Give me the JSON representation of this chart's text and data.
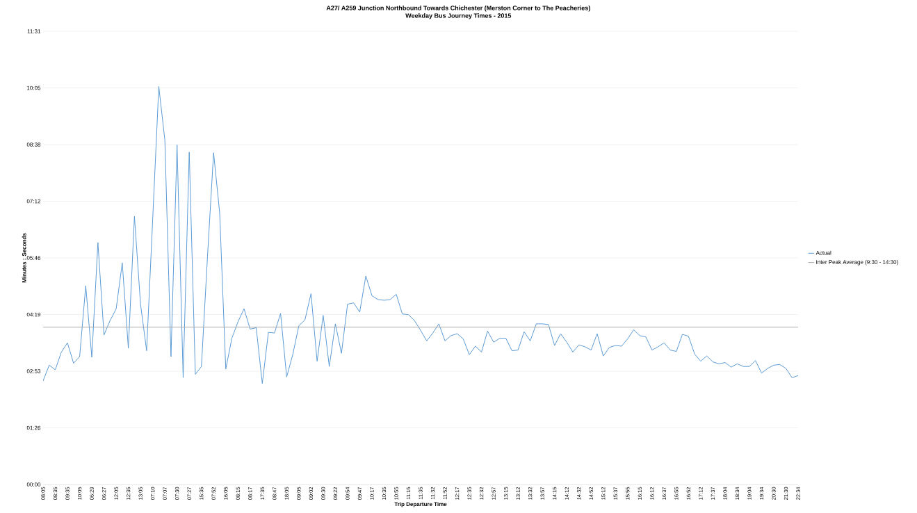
{
  "chart_data": {
    "type": "line",
    "title": "A27/ A259 Junction Northbound Towards Chichester (Merston Corner to The Peacheries)",
    "subtitle": "Weekday Bus Journey Times - 2015",
    "xlabel": "Trip Departure Time",
    "ylabel": "Minutes : Seconds",
    "categories": [
      "08:05",
      null,
      "08:35",
      null,
      "09:35",
      null,
      "10:05",
      null,
      "06:29",
      null,
      "06:27",
      null,
      "12:05",
      null,
      "12:35",
      null,
      "13:05",
      null,
      "07:10",
      null,
      "07:07",
      null,
      "07:30",
      null,
      "07:27",
      null,
      "15:35",
      null,
      "07:52",
      null,
      "16:05",
      null,
      "08:15",
      null,
      "08:17",
      null,
      "17:35",
      null,
      "08:47",
      null,
      "18:05",
      null,
      "09:05",
      null,
      "09:02",
      null,
      "09:30",
      null,
      "09:22",
      null,
      "09:54",
      null,
      "09:47",
      null,
      "10:17",
      null,
      "10:35",
      null,
      "10:55",
      null,
      "11:15",
      null,
      "11:35",
      null,
      "11:32",
      null,
      "11:52",
      null,
      "12:17",
      null,
      "12:35",
      null,
      "12:32",
      null,
      "12:57",
      null,
      "13:15",
      null,
      "13:12",
      null,
      "13:32",
      null,
      "13:57",
      null,
      "14:15",
      null,
      "14:12",
      null,
      "14:32",
      null,
      "14:52",
      null,
      "15:12",
      null,
      "15:37",
      null,
      "15:55",
      null,
      "16:15",
      null,
      "16:12",
      null,
      "16:37",
      null,
      "16:55",
      null,
      "16:52",
      null,
      "17:12",
      null,
      "17:37",
      null,
      "18:04",
      null,
      "18:34",
      null,
      "19:04",
      null,
      "19:34",
      null,
      "20:30",
      null,
      "21:30",
      null,
      "22:34"
    ],
    "series": [
      {
        "name": "Actual",
        "color": "#5b9bd5",
        "values": [
          158,
          182,
          175,
          202,
          216,
          185,
          195,
          303,
          194,
          369,
          228,
          250,
          268,
          338,
          208,
          409,
          275,
          204,
          405,
          607,
          525,
          195,
          518,
          163,
          507,
          168,
          180,
          348,
          506,
          414,
          176,
          223,
          248,
          268,
          237,
          239,
          154,
          232,
          231,
          261,
          164,
          198,
          242,
          251,
          291,
          188,
          258,
          180,
          245,
          200,
          275,
          277,
          263,
          318,
          288,
          282,
          281,
          282,
          290,
          260,
          259,
          250,
          235,
          219,
          231,
          245,
          219,
          227,
          230,
          222,
          198,
          211,
          202,
          234,
          217,
          223,
          223,
          204,
          205,
          233,
          219,
          245,
          245,
          244,
          212,
          230,
          217,
          202,
          213,
          210,
          205,
          230,
          196,
          209,
          212,
          211,
          222,
          236,
          227,
          225,
          205,
          210,
          216,
          205,
          203,
          229,
          226,
          199,
          188,
          196,
          187,
          184,
          186,
          179,
          184,
          180,
          180,
          189,
          170,
          177,
          182,
          183,
          177,
          163,
          166
        ]
      },
      {
        "name": "Inter Peak Average (9:30 - 14:30)",
        "color": "#a5a5a5",
        "values": [
          240,
          240,
          240,
          240,
          240,
          240,
          240,
          240,
          240,
          240,
          240,
          240,
          240,
          240,
          240,
          240,
          240,
          240,
          240,
          240,
          240,
          240,
          240,
          240,
          240,
          240,
          240,
          240,
          240,
          240,
          240,
          240,
          240,
          240,
          240,
          240,
          240,
          240,
          240,
          240,
          240,
          240,
          240,
          240,
          240,
          240,
          240,
          240,
          240,
          240,
          240,
          240,
          240,
          240,
          240,
          240,
          240,
          240,
          240,
          240,
          240,
          240,
          240,
          240,
          240,
          240,
          240,
          240,
          240,
          240,
          240,
          240,
          240,
          240,
          240,
          240,
          240,
          240,
          240,
          240,
          240,
          240,
          240,
          240,
          240,
          240,
          240,
          240,
          240,
          240,
          240,
          240,
          240,
          240,
          240,
          240,
          240,
          240,
          240,
          240,
          240,
          240,
          240,
          240,
          240,
          240,
          240,
          240,
          240,
          240,
          240,
          240,
          240,
          240,
          240,
          240,
          240,
          240,
          240,
          240,
          240,
          240,
          240,
          240,
          240
        ]
      }
    ],
    "ylim": [
      0,
      691.2
    ],
    "yticks": [
      {
        "value": 0,
        "label": "00:00"
      },
      {
        "value": 86.4,
        "label": "01:26"
      },
      {
        "value": 172.8,
        "label": "02:53"
      },
      {
        "value": 259.2,
        "label": "04:19"
      },
      {
        "value": 345.6,
        "label": "05:46"
      },
      {
        "value": 432,
        "label": "07:12"
      },
      {
        "value": 518.4,
        "label": "08:38"
      },
      {
        "value": 604.8,
        "label": "10:05"
      },
      {
        "value": 691.2,
        "label": "11:31"
      }
    ],
    "grid": "y",
    "legend": "right",
    "marker": "none",
    "line_style": "solid"
  }
}
